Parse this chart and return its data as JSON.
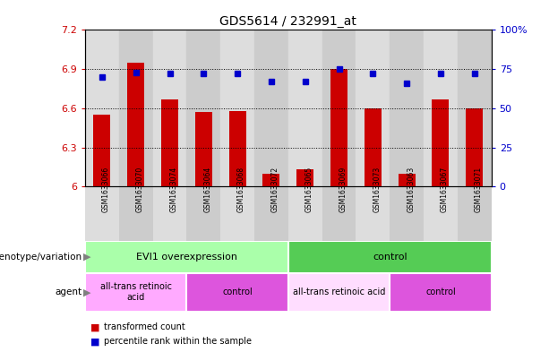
{
  "title": "GDS5614 / 232991_at",
  "samples": [
    "GSM1633066",
    "GSM1633070",
    "GSM1633074",
    "GSM1633064",
    "GSM1633068",
    "GSM1633072",
    "GSM1633065",
    "GSM1633069",
    "GSM1633073",
    "GSM1633063",
    "GSM1633067",
    "GSM1633071"
  ],
  "transformed_count": [
    6.55,
    6.95,
    6.67,
    6.57,
    6.58,
    6.1,
    6.13,
    6.9,
    6.6,
    6.1,
    6.67,
    6.6
  ],
  "percentile_rank": [
    70,
    73,
    72,
    72,
    72,
    67,
    67,
    75,
    72,
    66,
    72,
    72
  ],
  "ylim_left": [
    6.0,
    7.2
  ],
  "ylim_right": [
    0,
    100
  ],
  "yticks_left": [
    6.0,
    6.3,
    6.6,
    6.9,
    7.2
  ],
  "yticks_right": [
    0,
    25,
    50,
    75,
    100
  ],
  "ytick_labels_left": [
    "6",
    "6.3",
    "6.6",
    "6.9",
    "7.2"
  ],
  "ytick_labels_right": [
    "0",
    "25",
    "50",
    "75",
    "100%"
  ],
  "bar_color": "#cc0000",
  "dot_color": "#0000cc",
  "genotype_groups": [
    {
      "label": "EVI1 overexpression",
      "start": 0,
      "end": 6,
      "color": "#aaffaa"
    },
    {
      "label": "control",
      "start": 6,
      "end": 12,
      "color": "#55cc55"
    }
  ],
  "agent_groups": [
    {
      "label": "all-trans retinoic\nacid",
      "start": 0,
      "end": 3,
      "color": "#ffaaff"
    },
    {
      "label": "control",
      "start": 3,
      "end": 6,
      "color": "#dd55dd"
    },
    {
      "label": "all-trans retinoic acid",
      "start": 6,
      "end": 9,
      "color": "#ffddff"
    },
    {
      "label": "control",
      "start": 9,
      "end": 12,
      "color": "#dd55dd"
    }
  ],
  "legend_items": [
    {
      "label": "transformed count",
      "color": "#cc0000"
    },
    {
      "label": "percentile rank within the sample",
      "color": "#0000cc"
    }
  ],
  "bar_width": 0.5,
  "bg_color": "#ffffff",
  "tick_color_left": "#cc0000",
  "tick_color_right": "#0000cc",
  "row_label_genotype": "genotype/variation",
  "row_label_agent": "agent",
  "col_bg_even": "#dddddd",
  "col_bg_odd": "#cccccc",
  "sample_strip_bg": "#cccccc"
}
